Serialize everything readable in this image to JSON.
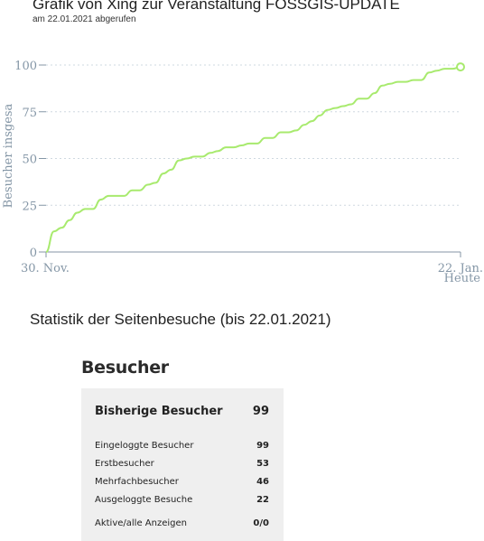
{
  "header": {
    "title": "Grafik von Xing zur Veranstaltung FOSSGIS-UPDATE",
    "subtitle": "am 22.01.2021 abgerufen"
  },
  "chart_data": {
    "type": "line",
    "ylabel": "Besucher insgesa",
    "xlabel": "",
    "x_tick_labels": [
      "30. Nov.",
      "22. Jan."
    ],
    "x_end_sublabel": "Heute",
    "y_ticks": [
      0,
      25,
      50,
      75,
      100
    ],
    "ylim": [
      0,
      100
    ],
    "grid": "horizontal dashed",
    "colors": {
      "line": "#a8ea6e",
      "axis": "#8496a6",
      "grid": "#cfd8e0"
    },
    "series": [
      {
        "values": [
          0,
          11,
          13,
          17,
          21,
          23,
          23,
          28,
          30,
          30,
          30,
          33,
          33,
          36,
          37,
          42,
          44,
          49,
          50,
          51,
          51,
          53,
          54,
          56,
          56,
          57,
          58,
          58,
          61,
          61,
          64,
          64,
          65,
          68,
          70,
          73,
          76,
          77,
          78,
          79,
          82,
          82,
          85,
          89,
          90,
          91,
          91,
          92,
          92,
          96,
          97,
          98,
          98,
          99
        ]
      }
    ]
  },
  "stats": {
    "section_heading": "Statistik der Seitenbesuche (bis 22.01.2021)",
    "panel_title": "Besucher",
    "main": {
      "label": "Bisherige Besucher",
      "value": "99"
    },
    "rows": [
      {
        "label": "Eingeloggte Besucher",
        "value": "99"
      },
      {
        "label": "Erstbesucher",
        "value": "53"
      },
      {
        "label": "Mehrfachbesucher",
        "value": "46"
      },
      {
        "label": "Ausgeloggte Besuche",
        "value": "22"
      },
      {
        "label": "Aktive/alle Anzeigen",
        "value": "0/0"
      }
    ]
  }
}
